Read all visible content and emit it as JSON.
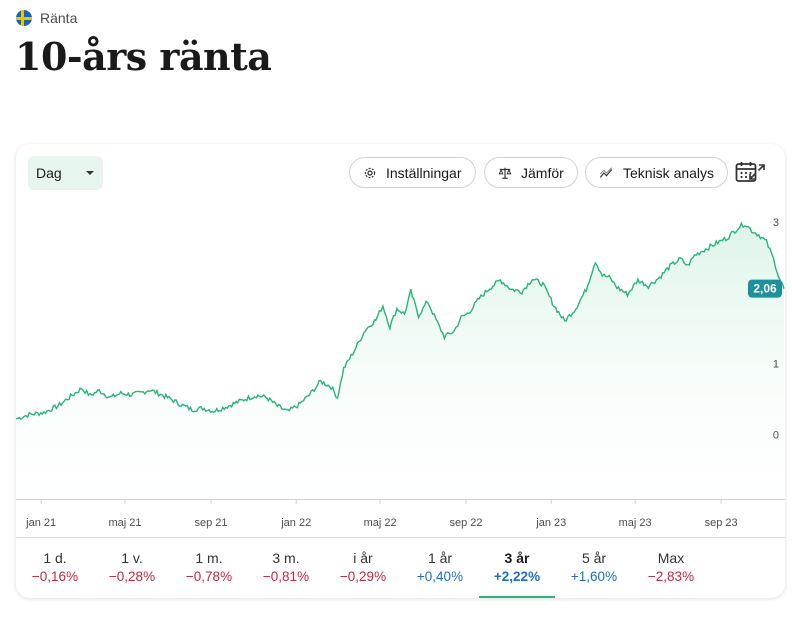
{
  "breadcrumb": {
    "label": "Ränta",
    "flag_icon": "sweden-flag-icon"
  },
  "page_title": "10-års ränta",
  "toolbar": {
    "interval": {
      "selected": "Dag"
    },
    "settings_label": "Inställningar",
    "compare_label": "Jämför",
    "technical_label": "Teknisk analys"
  },
  "colors": {
    "line": "#2ab37a",
    "fill": "#e8f7f0",
    "badge": "#1f8f9b",
    "negative": "#c5273f",
    "positive": "#1e6fc1"
  },
  "chart_data": {
    "type": "area",
    "x_ticks": [
      "jan 21",
      "maj 21",
      "sep 21",
      "jan 22",
      "maj 22",
      "sep 22",
      "jan 23",
      "maj 23",
      "sep 23"
    ],
    "y_ticks": [
      0,
      1,
      3
    ],
    "ylim": [
      -0.9,
      3.2
    ],
    "last_value_label": "2,06",
    "grid": false,
    "series": [
      {
        "points": [
          [
            "2020-11-26",
            0.22
          ],
          [
            "2020-12-15",
            0.28
          ],
          [
            "2021-01-05",
            0.31
          ],
          [
            "2021-01-25",
            0.4
          ],
          [
            "2021-02-10",
            0.52
          ],
          [
            "2021-02-28",
            0.65
          ],
          [
            "2021-03-12",
            0.55
          ],
          [
            "2021-03-25",
            0.62
          ],
          [
            "2021-04-10",
            0.52
          ],
          [
            "2021-04-25",
            0.58
          ],
          [
            "2021-05-10",
            0.56
          ],
          [
            "2021-05-25",
            0.59
          ],
          [
            "2021-06-05",
            0.63
          ],
          [
            "2021-06-20",
            0.57
          ],
          [
            "2021-07-05",
            0.5
          ],
          [
            "2021-07-20",
            0.42
          ],
          [
            "2021-08-05",
            0.35
          ],
          [
            "2021-08-20",
            0.37
          ],
          [
            "2021-09-05",
            0.33
          ],
          [
            "2021-09-20",
            0.38
          ],
          [
            "2021-10-05",
            0.44
          ],
          [
            "2021-10-20",
            0.5
          ],
          [
            "2021-11-05",
            0.55
          ],
          [
            "2021-11-20",
            0.52
          ],
          [
            "2021-12-05",
            0.4
          ],
          [
            "2021-12-20",
            0.32
          ],
          [
            "2022-01-05",
            0.42
          ],
          [
            "2022-01-20",
            0.56
          ],
          [
            "2022-02-05",
            0.75
          ],
          [
            "2022-02-20",
            0.67
          ],
          [
            "2022-03-01",
            0.52
          ],
          [
            "2022-03-10",
            0.93
          ],
          [
            "2022-03-25",
            1.18
          ],
          [
            "2022-04-10",
            1.48
          ],
          [
            "2022-04-25",
            1.62
          ],
          [
            "2022-05-05",
            1.82
          ],
          [
            "2022-05-15",
            1.52
          ],
          [
            "2022-05-25",
            1.78
          ],
          [
            "2022-06-05",
            1.7
          ],
          [
            "2022-06-14",
            2.02
          ],
          [
            "2022-06-25",
            1.68
          ],
          [
            "2022-07-08",
            1.88
          ],
          [
            "2022-07-20",
            1.62
          ],
          [
            "2022-08-01",
            1.38
          ],
          [
            "2022-08-15",
            1.46
          ],
          [
            "2022-08-25",
            1.65
          ],
          [
            "2022-09-05",
            1.72
          ],
          [
            "2022-09-20",
            1.92
          ],
          [
            "2022-10-05",
            2.07
          ],
          [
            "2022-10-20",
            2.18
          ],
          [
            "2022-11-05",
            2.05
          ],
          [
            "2022-11-20",
            2.02
          ],
          [
            "2022-12-05",
            2.2
          ],
          [
            "2022-12-20",
            2.12
          ],
          [
            "2023-01-05",
            1.82
          ],
          [
            "2023-01-20",
            1.6
          ],
          [
            "2023-02-05",
            1.78
          ],
          [
            "2023-02-20",
            2.05
          ],
          [
            "2023-03-05",
            2.45
          ],
          [
            "2023-03-15",
            2.25
          ],
          [
            "2023-03-25",
            2.22
          ],
          [
            "2023-04-05",
            2.08
          ],
          [
            "2023-04-20",
            1.98
          ],
          [
            "2023-05-05",
            2.18
          ],
          [
            "2023-05-20",
            2.1
          ],
          [
            "2023-06-05",
            2.22
          ],
          [
            "2023-06-20",
            2.38
          ],
          [
            "2023-07-05",
            2.48
          ],
          [
            "2023-07-15",
            2.38
          ],
          [
            "2023-07-25",
            2.53
          ],
          [
            "2023-08-10",
            2.62
          ],
          [
            "2023-08-25",
            2.7
          ],
          [
            "2023-09-10",
            2.78
          ],
          [
            "2023-09-25",
            2.92
          ],
          [
            "2023-10-05",
            2.98
          ],
          [
            "2023-10-15",
            2.88
          ],
          [
            "2023-10-25",
            2.82
          ],
          [
            "2023-11-05",
            2.72
          ],
          [
            "2023-11-15",
            2.48
          ],
          [
            "2023-11-23",
            2.22
          ],
          [
            "2023-11-30",
            2.06
          ]
        ]
      }
    ]
  },
  "periods": [
    {
      "label": "1 d.",
      "change": "−0,16%",
      "sign": "neg"
    },
    {
      "label": "1 v.",
      "change": "−0,28%",
      "sign": "neg"
    },
    {
      "label": "1 m.",
      "change": "−0,78%",
      "sign": "neg"
    },
    {
      "label": "3 m.",
      "change": "−0,81%",
      "sign": "neg"
    },
    {
      "label": "i år",
      "change": "−0,29%",
      "sign": "neg"
    },
    {
      "label": "1 år",
      "change": "+0,40%",
      "sign": "pos"
    },
    {
      "label": "3 år",
      "change": "+2,22%",
      "sign": "pos",
      "active": true
    },
    {
      "label": "5 år",
      "change": "+1,60%",
      "sign": "pos"
    },
    {
      "label": "Max",
      "change": "−2,83%",
      "sign": "neg"
    }
  ],
  "calendar_icon": "calendar-icon"
}
